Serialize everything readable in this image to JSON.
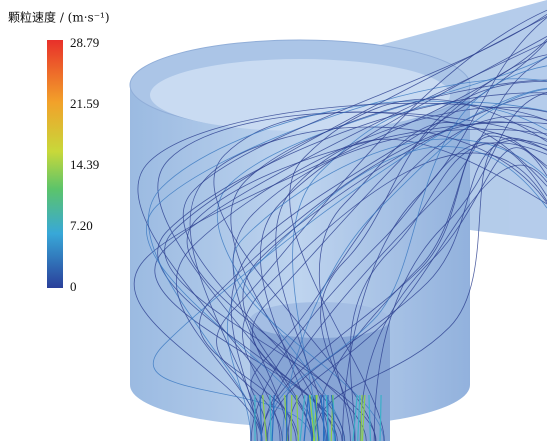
{
  "legend": {
    "title": "颗粒速度 / (m·s⁻¹)",
    "ticks": [
      "28.79",
      "21.59",
      "14.39",
      "7.20",
      "0"
    ]
  }
}
